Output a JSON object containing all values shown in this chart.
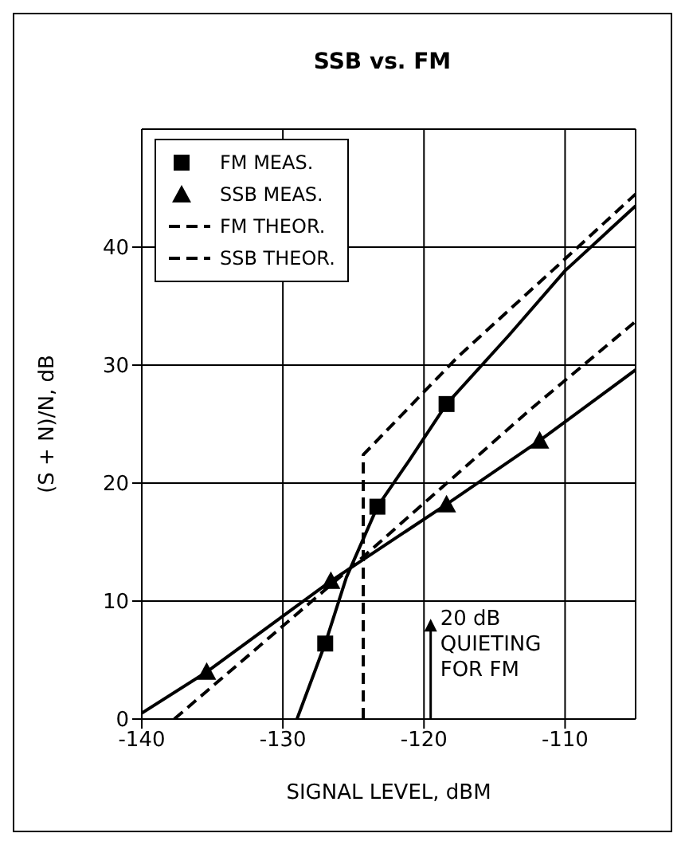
{
  "chart_data": {
    "type": "line",
    "title": "SSB vs. FM",
    "xlabel": "SIGNAL LEVEL, dBM",
    "ylabel": "(S + N)/N, dB",
    "xlim": [
      -140,
      -105
    ],
    "xticks": [
      -140,
      -130,
      -120,
      -110
    ],
    "ylim": [
      0,
      50
    ],
    "yticks": [
      0,
      10,
      20,
      30,
      40
    ],
    "grid": true,
    "legend": "top left",
    "annotations": [
      "20 dB QUIETING FOR FM"
    ],
    "series": [
      {
        "name": "FM MEAS.",
        "type": "scatter",
        "marker": "square",
        "color": "#000000",
        "x": [
          -127,
          -123.3,
          -118.4
        ],
        "values": [
          6.4,
          18,
          26.7
        ]
      },
      {
        "name": "SSB MEAS.",
        "type": "scatter",
        "marker": "triangle",
        "color": "#000000",
        "x": [
          -135.4,
          -126.6,
          -118.4,
          -111.8
        ],
        "values": [
          4,
          11.7,
          18.2,
          23.6
        ]
      },
      {
        "name": "FM THEOR.",
        "line_style": "dashed",
        "marker": "none",
        "color": "#000000",
        "x": [
          -124.3,
          -124.3,
          -117.6,
          -110,
          -105
        ],
        "values": [
          0,
          22.4,
          30.7,
          39,
          44.5
        ]
      },
      {
        "name": "SSB THEOR.",
        "line_style": "dashed",
        "marker": "none",
        "color": "#000000",
        "x": [
          -137.7,
          -125.5,
          -112.4,
          -105
        ],
        "values": [
          0,
          12.5,
          26.3,
          33.7
        ]
      },
      {
        "line_style": "solid",
        "marker": "none",
        "color": "#000000",
        "x": [
          -129,
          -127,
          -125.5,
          -123.3,
          -121,
          -118.4,
          -114,
          -110,
          -105
        ],
        "values": [
          0,
          6.4,
          12,
          18,
          22,
          26.7,
          32.5,
          38,
          43.5
        ]
      },
      {
        "line_style": "solid",
        "marker": "none",
        "color": "#000000",
        "x": [
          -140,
          -135.4,
          -126.6,
          -118.4,
          -111.8,
          -105
        ],
        "values": [
          0.5,
          4,
          11.7,
          18.2,
          23.6,
          29.6
        ]
      }
    ]
  }
}
